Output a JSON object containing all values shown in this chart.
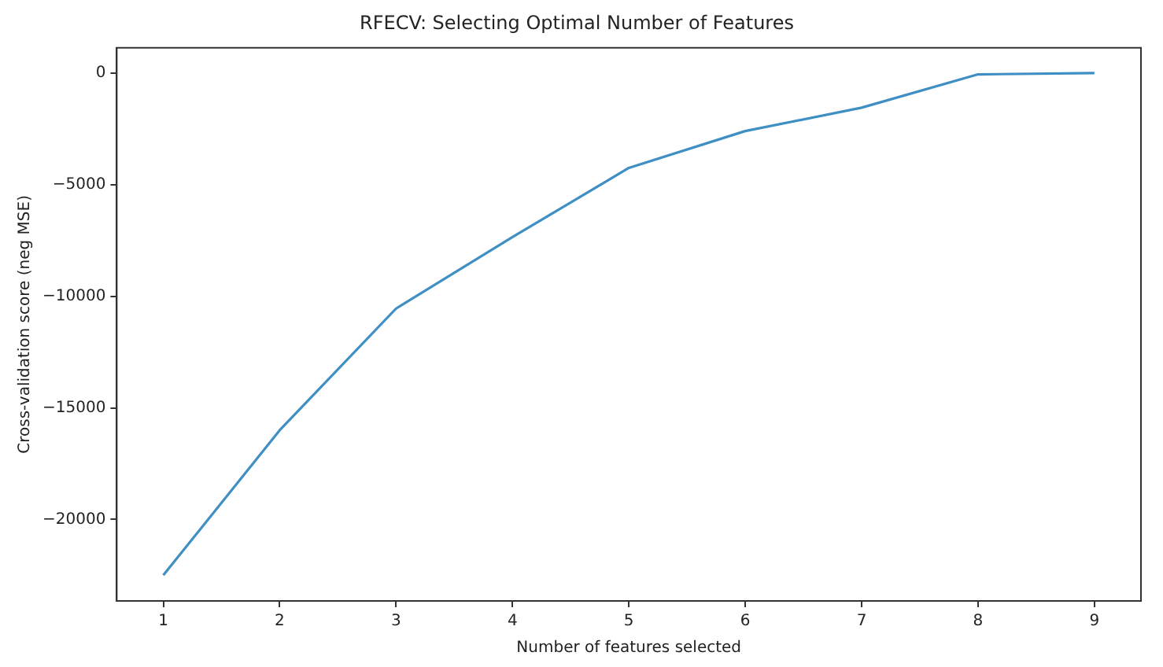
{
  "chart_data": {
    "type": "line",
    "title": "RFECV: Selecting Optimal Number of Features",
    "xlabel": "Number of features selected",
    "ylabel": "Cross-validation score (neg MSE)",
    "x": [
      1,
      2,
      3,
      4,
      5,
      6,
      7,
      8,
      9
    ],
    "series": [
      {
        "color": "#3f8fc4",
        "values": [
          -22500,
          -16000,
          -10550,
          -7350,
          -4250,
          -2600,
          -1550,
          -60,
          0
        ]
      }
    ],
    "xlim": [
      0.6,
      9.4
    ],
    "xticks": [
      1,
      2,
      3,
      4,
      5,
      6,
      7,
      8,
      9
    ],
    "ylim": [
      -23650,
      1130
    ],
    "yticks": [
      {
        "value": -20000,
        "label": "−20000"
      },
      {
        "value": -15000,
        "label": "−15000"
      },
      {
        "value": -10000,
        "label": "−10000"
      },
      {
        "value": -5000,
        "label": "−5000"
      },
      0
    ],
    "grid": false,
    "legend": false,
    "marker": "none",
    "line_style": "solid"
  }
}
